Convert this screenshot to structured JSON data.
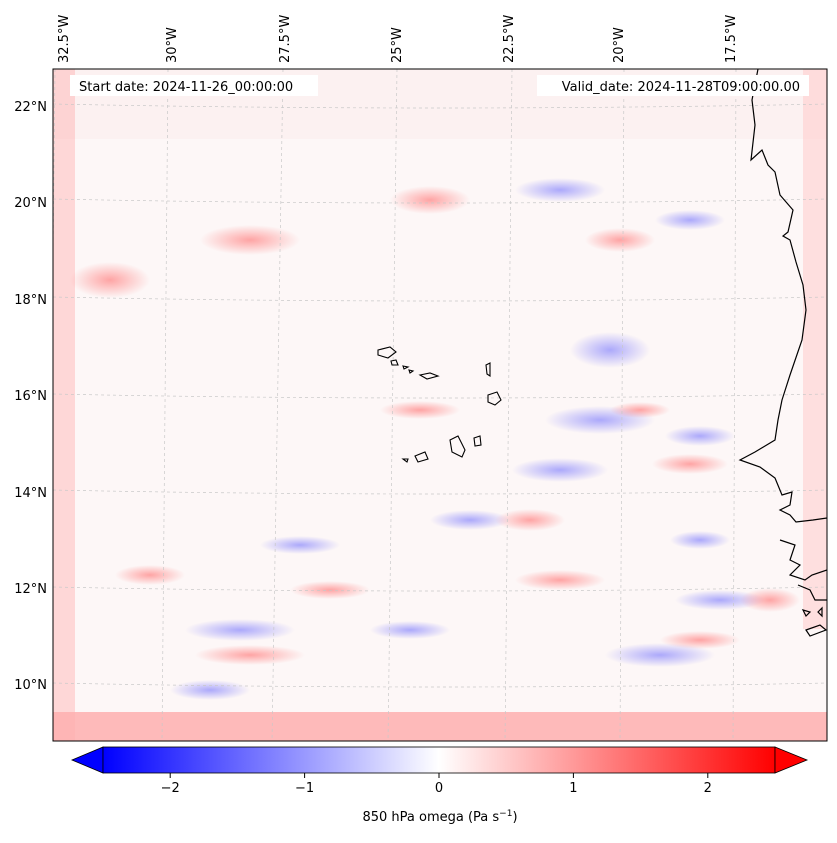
{
  "map": {
    "start_label": "Start date: 2024-11-26_00:00:00",
    "valid_label": "Valid_date: 2024-11-28T09:00:00.00",
    "lon_labels": [
      "32.5°W",
      "30°W",
      "27.5°W",
      "25°W",
      "22.5°W",
      "20°W",
      "17.5°W"
    ],
    "lat_labels": [
      "22°N",
      "20°N",
      "18°N",
      "16°N",
      "14°N",
      "12°N",
      "10°N"
    ],
    "colorbar": {
      "ticks": [
        "−2",
        "−1",
        "0",
        "1",
        "2"
      ],
      "tick_values": [
        -2,
        -1,
        0,
        1,
        2
      ],
      "range": [
        -2.5,
        2.5
      ],
      "label_main": "850 hPa omega (Pa s",
      "label_sup": "−1",
      "label_end": ")"
    },
    "colors": {
      "negative": "#0000ff",
      "zero": "#ffffff",
      "positive": "#ff0000",
      "coast": "#000000"
    }
  }
}
